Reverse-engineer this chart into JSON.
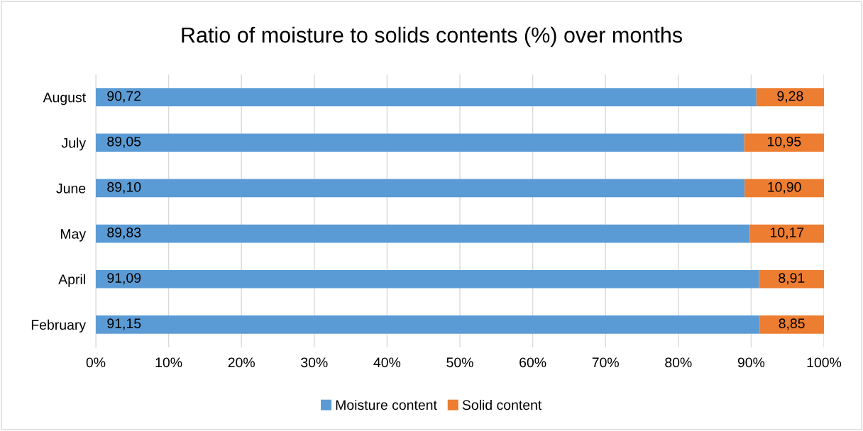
{
  "chart_data": {
    "type": "bar",
    "orientation": "horizontal",
    "stacked": true,
    "title": "Ratio of moisture to solids contents (%) over months",
    "categories": [
      "August",
      "July",
      "June",
      "May",
      "April",
      "February"
    ],
    "series": [
      {
        "name": "Moisture content",
        "color": "#5b9bd5",
        "values": [
          90.72,
          89.05,
          89.1,
          89.83,
          91.09,
          91.15
        ],
        "value_labels": [
          "90,72",
          "89,05",
          "89,10",
          "89,83",
          "91,09",
          "91,15"
        ]
      },
      {
        "name": "Solid content",
        "color": "#ed7d31",
        "values": [
          9.28,
          10.95,
          10.9,
          10.17,
          8.91,
          8.85
        ],
        "value_labels": [
          "9,28",
          "10,95",
          "10,90",
          "10,17",
          "8,91",
          "8,85"
        ]
      }
    ],
    "xlim": [
      0,
      100
    ],
    "xticks": [
      {
        "value": 0,
        "label": "0%"
      },
      {
        "value": 10,
        "label": "10%"
      },
      {
        "value": 20,
        "label": "20%"
      },
      {
        "value": 30,
        "label": "30%"
      },
      {
        "value": 40,
        "label": "40%"
      },
      {
        "value": 50,
        "label": "50%"
      },
      {
        "value": 60,
        "label": "60%"
      },
      {
        "value": 70,
        "label": "70%"
      },
      {
        "value": 80,
        "label": "80%"
      },
      {
        "value": 90,
        "label": "90%"
      },
      {
        "value": 100,
        "label": "100%"
      }
    ],
    "grid": "x",
    "legend": "bottom"
  }
}
